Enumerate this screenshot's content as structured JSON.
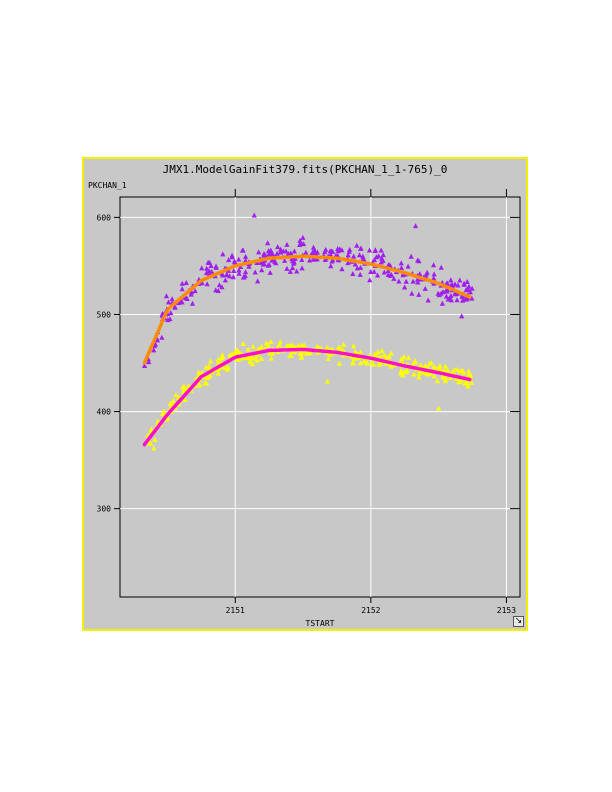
{
  "window": {
    "title": "JMX1.ModelGainFit379.fits(PKCHAN_1_1-765)_0",
    "resize_icon": "resize-arrow-icon",
    "border_color": "#f2f200",
    "background": "#c8c8c8"
  },
  "chart_data": {
    "type": "scatter",
    "title": "JMX1.ModelGainFit379.fits(PKCHAN_1_1-765)_0",
    "xlabel": "TSTART",
    "ylabel": "PKCHAN_1",
    "xlim": [
      2150.15,
      2153.1
    ],
    "ylim": [
      209,
      621
    ],
    "xticks": [
      2151,
      2152,
      2153
    ],
    "yticks": [
      300,
      400,
      500,
      600
    ],
    "grid": true,
    "series": [
      {
        "marker": "triangle",
        "color": "#a020f0",
        "x_range": [
          2150.33,
          2152.75
        ],
        "trend": {
          "x": [
            2150.33,
            2150.5,
            2150.75,
            2151.0,
            2151.25,
            2151.5,
            2151.75,
            2152.0,
            2152.25,
            2152.5,
            2152.73
          ],
          "y": [
            450,
            505,
            535,
            550,
            558,
            560,
            558,
            552,
            543,
            532,
            518
          ]
        },
        "spread": 12,
        "outliers": [
          {
            "x": 2151.14,
            "y": 602
          },
          {
            "x": 2152.33,
            "y": 591
          },
          {
            "x": 2152.67,
            "y": 498
          }
        ]
      },
      {
        "marker": "triangle",
        "color": "#ffff00",
        "x_range": [
          2150.33,
          2152.75
        ],
        "trend": {
          "x": [
            2150.33,
            2150.5,
            2150.75,
            2151.0,
            2151.25,
            2151.5,
            2151.75,
            2152.0,
            2152.25,
            2152.5,
            2152.73
          ],
          "y": [
            368,
            398,
            437,
            456,
            463,
            464,
            461,
            455,
            447,
            440,
            433
          ]
        },
        "spread": 7,
        "outliers": [
          {
            "x": 2151.68,
            "y": 431
          },
          {
            "x": 2152.5,
            "y": 403
          },
          {
            "x": 2150.4,
            "y": 362
          }
        ]
      }
    ],
    "fits": [
      {
        "color": "#ff8c00",
        "x": [
          2150.33,
          2150.5,
          2150.75,
          2151.0,
          2151.25,
          2151.5,
          2151.75,
          2152.0,
          2152.25,
          2152.5,
          2152.73
        ],
        "y": [
          450,
          505,
          535,
          550,
          558,
          560,
          558,
          552,
          543,
          532,
          518
        ]
      },
      {
        "color": "#ff10c8",
        "x": [
          2150.33,
          2150.5,
          2150.75,
          2151.0,
          2151.25,
          2151.5,
          2151.75,
          2152.0,
          2152.25,
          2152.5,
          2152.73
        ],
        "y": [
          366,
          397,
          436,
          456,
          463,
          464,
          461,
          455,
          447,
          440,
          433
        ]
      }
    ]
  }
}
